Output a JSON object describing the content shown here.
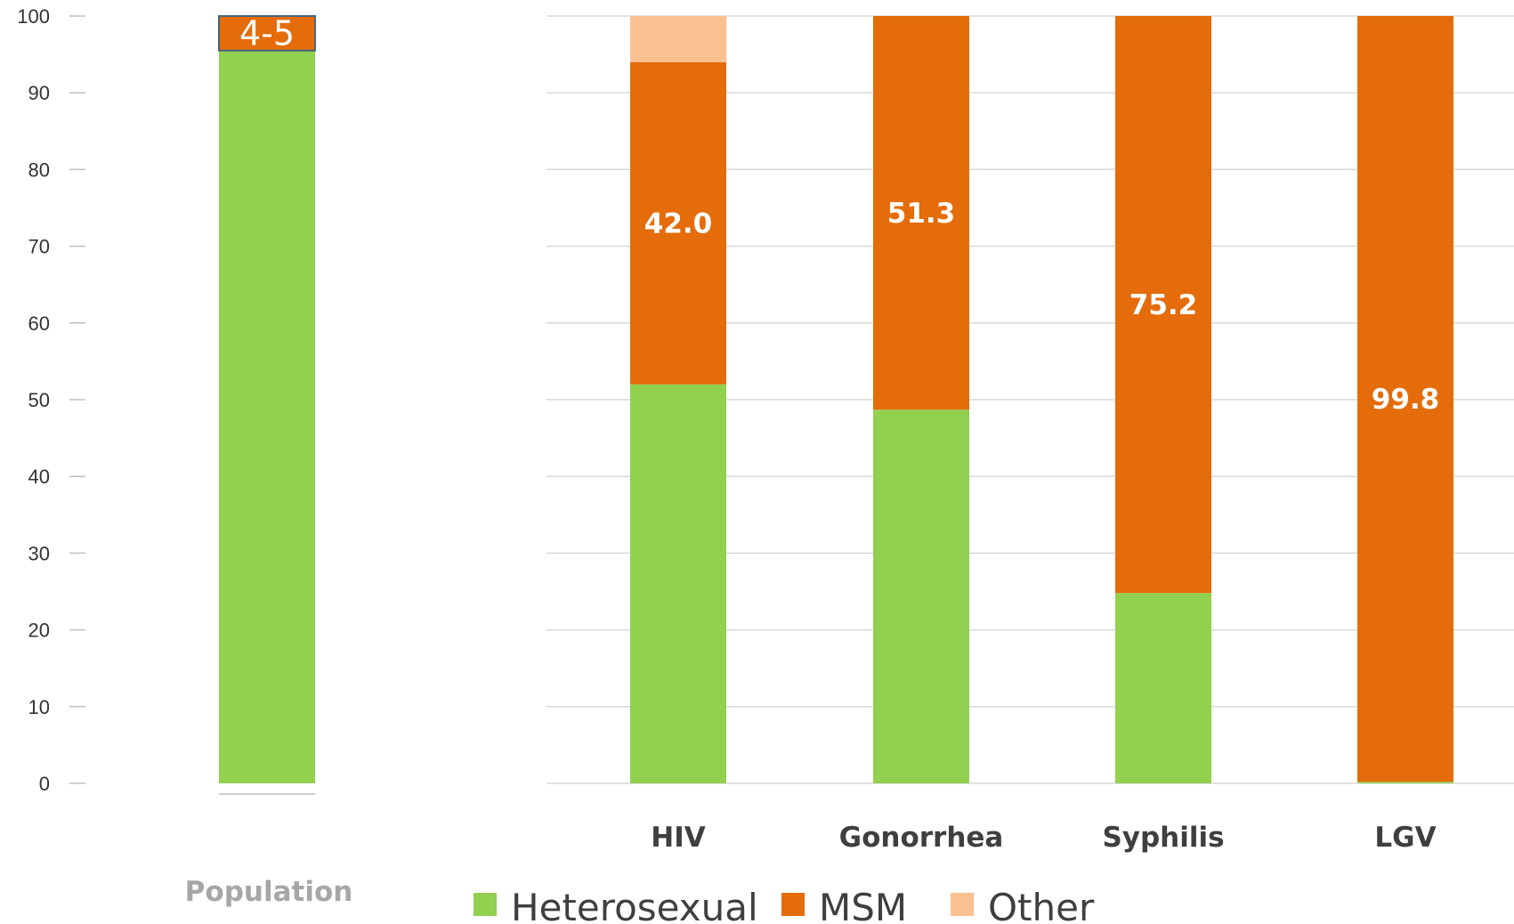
{
  "chart_data": {
    "type": "bar",
    "stacked": true,
    "ylim": [
      0,
      100
    ],
    "yticks": [
      "0",
      "10",
      "20",
      "30",
      "40",
      "50",
      "60",
      "70",
      "80",
      "90",
      "100"
    ],
    "grid": true,
    "legend_position": "bottom",
    "population": {
      "label": "Population",
      "segments": [
        {
          "series": "Heterosexual",
          "value": 95.5
        },
        {
          "series": "MSM",
          "value": 4.5
        }
      ],
      "data_label": "4-5"
    },
    "categories": [
      "HIV",
      "Gonorrhea",
      "Syphilis",
      "LGV"
    ],
    "series": [
      {
        "name": "Heterosexual",
        "color": "#92d050",
        "values": [
          52.0,
          48.7,
          24.8,
          0.2
        ]
      },
      {
        "name": "MSM",
        "color": "#e46c0a",
        "values": [
          42.0,
          51.3,
          75.2,
          99.8
        ]
      },
      {
        "name": "Other",
        "color": "#fac090",
        "values": [
          6.0,
          0,
          0,
          0
        ]
      }
    ],
    "data_labels": [
      "42.0",
      "51.3",
      "75.2",
      "99.8"
    ],
    "legend": [
      "Heterosexual",
      "MSM",
      "Other"
    ]
  }
}
